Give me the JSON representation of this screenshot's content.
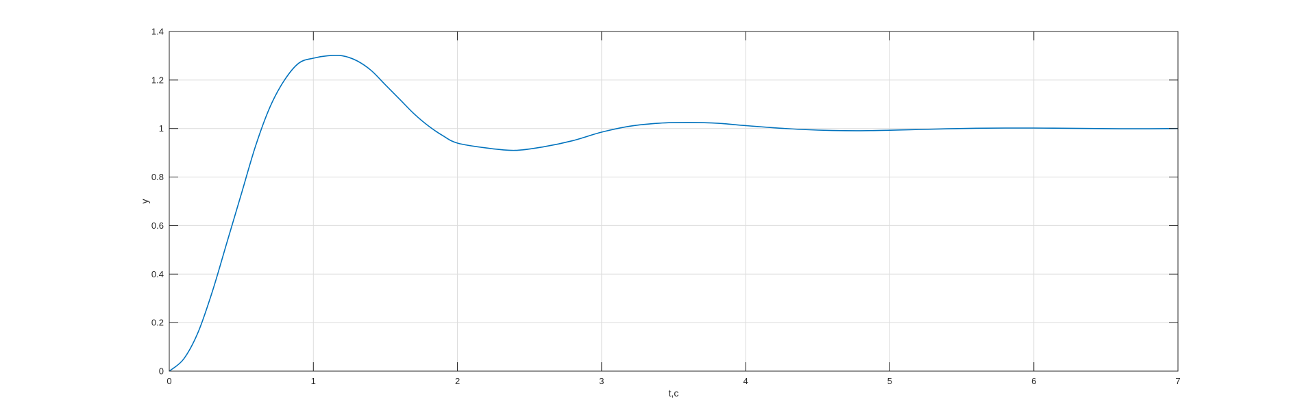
{
  "chart_data": {
    "type": "line",
    "title": "",
    "xlabel": "t,c",
    "ylabel": "y",
    "xlim": [
      0,
      7
    ],
    "ylim": [
      0,
      1.4
    ],
    "xticks": [
      0,
      1,
      2,
      3,
      4,
      5,
      6,
      7
    ],
    "yticks": [
      0,
      0.2,
      0.4,
      0.6,
      0.8,
      1,
      1.2,
      1.4
    ],
    "xtick_labels": [
      "0",
      "1",
      "2",
      "3",
      "4",
      "5",
      "6",
      "7"
    ],
    "ytick_labels": [
      "0",
      "0.2",
      "0.4",
      "0.6",
      "0.8",
      "1",
      "1.2",
      "1.4"
    ],
    "grid": true,
    "legend": "none",
    "series": [
      {
        "color": "#0072bd",
        "x": [
          0,
          0.1,
          0.2,
          0.3,
          0.4,
          0.5,
          0.6,
          0.7,
          0.8,
          0.9,
          1.0,
          1.1,
          1.2,
          1.3,
          1.4,
          1.5,
          1.6,
          1.7,
          1.8,
          1.9,
          2.0,
          2.2,
          2.4,
          2.6,
          2.8,
          3.0,
          3.2,
          3.4,
          3.6,
          3.8,
          4.0,
          4.2,
          4.4,
          4.6,
          4.8,
          5.0,
          5.2,
          5.4,
          5.6,
          5.8,
          6.0,
          6.2,
          6.4,
          6.6,
          6.8,
          7.0
        ],
        "y": [
          0,
          0.05,
          0.16,
          0.33,
          0.53,
          0.73,
          0.93,
          1.09,
          1.2,
          1.27,
          1.29,
          1.3,
          1.3,
          1.28,
          1.24,
          1.18,
          1.12,
          1.06,
          1.01,
          0.97,
          0.94,
          0.92,
          0.91,
          0.925,
          0.95,
          0.985,
          1.01,
          1.022,
          1.025,
          1.022,
          1.012,
          1.003,
          0.996,
          0.992,
          0.991,
          0.993,
          0.996,
          0.999,
          1.001,
          1.002,
          1.002,
          1.001,
          1.0,
          0.999,
          0.999,
          1.0
        ]
      }
    ]
  }
}
